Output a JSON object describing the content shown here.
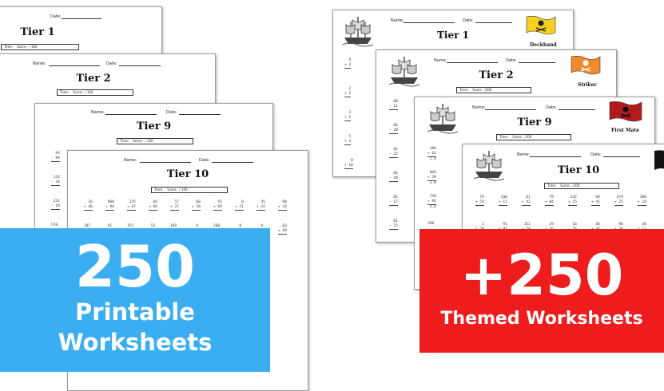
{
  "left_set": {
    "sheets": [
      {
        "id": "l1",
        "title": "Tier 1",
        "name_label": "",
        "date_label": "Date:",
        "time_label": "Time:",
        "score_label": "Score:",
        "score_total": "/ 100"
      },
      {
        "id": "l2",
        "title": "Tier 2",
        "name_label": "Name:",
        "date_label": "Date:",
        "time_label": "Time:",
        "score_label": "Score:",
        "score_total": "/ 100"
      },
      {
        "id": "l3",
        "title": "Tier 9",
        "name_label": "Name:",
        "date_label": "Date:",
        "time_label": "Time:",
        "score_label": "Score:",
        "score_total": "/ 100"
      },
      {
        "id": "l4",
        "title": "Tier 10",
        "name_label": "Name:",
        "date_label": "Date:",
        "time_label": "Time:",
        "score_label": "Score:",
        "score_total": "/ 100"
      }
    ],
    "problems_row1": [
      [
        "16",
        "+ 46"
      ],
      [
        "980",
        "+ 94"
      ],
      [
        "235",
        "+ 47"
      ],
      [
        "84",
        "+ 66"
      ],
      [
        "57",
        "+ 37"
      ],
      [
        "60",
        "+ 20"
      ],
      [
        "55",
        "+ 69"
      ],
      [
        "0",
        "+ 11"
      ],
      [
        "45",
        "+ 24"
      ],
      [
        "90",
        "+ 33"
      ]
    ],
    "problems_row2": [
      [
        "207",
        "- 8"
      ],
      [
        "61",
        "- 0"
      ],
      [
        "152",
        "- 9"
      ],
      [
        "53",
        "- 7"
      ],
      [
        "169",
        "- 9"
      ],
      [
        "0",
        "- 0"
      ],
      [
        "268",
        "- 9"
      ],
      [
        "8",
        "- 4"
      ],
      [
        "0",
        "- 5"
      ],
      [
        "83",
        "+ 49"
      ]
    ]
  },
  "right_set": {
    "sheets": [
      {
        "id": "r1",
        "title": "Tier 1",
        "name_label": "Name:",
        "date_label": "Date:",
        "rank": "Deckhand",
        "flag_color": "#f5d020"
      },
      {
        "id": "r2",
        "title": "Tier 2",
        "name_label": "Name:",
        "date_label": "Date:",
        "rank": "Striker",
        "flag_color": "#f08a2a",
        "time_label": "Time:",
        "score_label": "Score:",
        "score_total": "/100"
      },
      {
        "id": "r3",
        "title": "Tier 9",
        "name_label": "Name:",
        "date_label": "Date:",
        "rank": "First Mate",
        "flag_color": "#b01c1c",
        "time_label": "Time:",
        "score_label": "Score:",
        "score_total": "/100"
      },
      {
        "id": "r4",
        "title": "Tier 10",
        "name_label": "Name:",
        "date_label": "Date:",
        "rank": "",
        "flag_color": "#111111",
        "time_label": "Time:",
        "score_label": "Score:",
        "score_total": "/100"
      }
    ],
    "problems_row1": [
      [
        "79",
        "+ 54"
      ],
      [
        "140",
        "+ 11"
      ],
      [
        "61",
        "+ 42"
      ],
      [
        "79",
        "+ 84"
      ],
      [
        "242",
        "+ 25"
      ],
      [
        "69",
        "+ 41"
      ],
      [
        "279",
        "+ 25"
      ],
      [
        "388",
        "+ 18"
      ]
    ],
    "problems_row2": [
      [
        "2",
        "x 29"
      ],
      [
        "91",
        "+ 91"
      ],
      [
        "152",
        "+ 79"
      ],
      [
        "29",
        "x 26"
      ],
      [
        "16",
        "- 24"
      ],
      [
        "46",
        "x 34"
      ],
      [
        "96",
        "x 34"
      ],
      [
        "30",
        "x 13"
      ]
    ]
  },
  "banners": {
    "left": {
      "number": "250",
      "line1": "Printable",
      "line2": "Worksheets",
      "color": "#3aaef0"
    },
    "right": {
      "number": "+250",
      "line1": "Themed Worksheets",
      "color": "#ee1c1c"
    }
  }
}
